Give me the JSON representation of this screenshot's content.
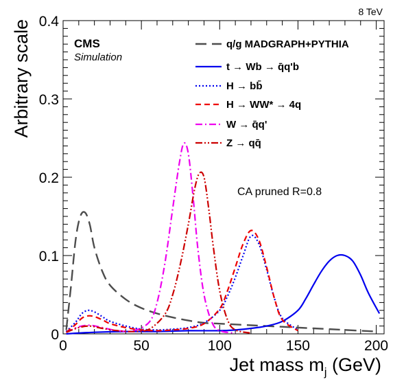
{
  "chart_data": {
    "type": "line",
    "energy_label": "8 TeV",
    "experiment_label": "CMS",
    "simulation_label": "Simulation",
    "annotation": "CA pruned R=0.8",
    "xlabel_main": "Jet mass m",
    "xlabel_sub": "j",
    "xlabel_unit": " (GeV)",
    "ylabel": "Arbitrary scale",
    "xlim": [
      0,
      205
    ],
    "ylim": [
      0,
      0.4
    ],
    "x_ticks": [
      0,
      50,
      100,
      150,
      200
    ],
    "y_ticks": [
      0,
      0.1,
      0.2,
      0.3,
      0.4
    ],
    "y_tick_labels": [
      "0",
      "0.1",
      "0.2",
      "0.3",
      "0.4"
    ],
    "legend_placement": "top-right",
    "series": [
      {
        "name": "q/g MADGRAPH+PYTHIA",
        "color": "#4d4d4d",
        "dash": "long-dash",
        "x": [
          2,
          5,
          8,
          11,
          14,
          17,
          20,
          25,
          30,
          40,
          50,
          60,
          70,
          80,
          90,
          100,
          120,
          140,
          160,
          180,
          200
        ],
        "y": [
          0.005,
          0.06,
          0.12,
          0.15,
          0.155,
          0.14,
          0.11,
          0.08,
          0.062,
          0.044,
          0.033,
          0.026,
          0.021,
          0.017,
          0.014,
          0.013,
          0.011,
          0.009,
          0.007,
          0.005,
          0.003
        ]
      },
      {
        "name": "t → Wb → q̄q'b",
        "color": "#0000ee",
        "dash": "solid",
        "x": [
          2,
          20,
          40,
          60,
          80,
          100,
          110,
          120,
          130,
          140,
          150,
          155,
          160,
          165,
          170,
          175,
          180,
          185,
          190,
          195,
          202
        ],
        "y": [
          0,
          0.002,
          0.003,
          0.003,
          0.004,
          0.004,
          0.005,
          0.007,
          0.01,
          0.016,
          0.03,
          0.045,
          0.063,
          0.08,
          0.093,
          0.1,
          0.1,
          0.093,
          0.075,
          0.052,
          0.026
        ]
      },
      {
        "name": "H → bb̄",
        "color": "#0000ee",
        "dash": "dot",
        "x": [
          2,
          8,
          12,
          16,
          20,
          25,
          30,
          40,
          50,
          60,
          70,
          80,
          90,
          100,
          105,
          110,
          115,
          120,
          125,
          130,
          135,
          140,
          150
        ],
        "y": [
          0.003,
          0.015,
          0.026,
          0.03,
          0.028,
          0.022,
          0.016,
          0.01,
          0.006,
          0.005,
          0.006,
          0.008,
          0.014,
          0.03,
          0.048,
          0.072,
          0.1,
          0.125,
          0.115,
          0.082,
          0.045,
          0.02,
          0.005
        ]
      },
      {
        "name": "H → WW* → 4q",
        "color": "#ee0000",
        "dash": "dash",
        "x": [
          2,
          8,
          12,
          16,
          20,
          25,
          30,
          40,
          50,
          60,
          70,
          80,
          90,
          100,
          105,
          110,
          115,
          120,
          125,
          130,
          135,
          140,
          150
        ],
        "y": [
          0.002,
          0.012,
          0.02,
          0.023,
          0.022,
          0.018,
          0.013,
          0.008,
          0.005,
          0.004,
          0.005,
          0.007,
          0.013,
          0.032,
          0.055,
          0.085,
          0.115,
          0.132,
          0.12,
          0.085,
          0.045,
          0.018,
          0.004
        ]
      },
      {
        "name": "W → q̄q'",
        "color": "#ee00ee",
        "dash": "dash-dot",
        "x": [
          2,
          10,
          17,
          25,
          35,
          45,
          55,
          60,
          65,
          70,
          74,
          77,
          80,
          83,
          86,
          90,
          95,
          100,
          110
        ],
        "y": [
          0.002,
          0.009,
          0.011,
          0.008,
          0.004,
          0.004,
          0.015,
          0.04,
          0.09,
          0.16,
          0.215,
          0.243,
          0.23,
          0.175,
          0.11,
          0.05,
          0.015,
          0.004,
          0.001
        ]
      },
      {
        "name": "Z → qq̄",
        "color": "#cc0000",
        "dash": "dash-dot-dot",
        "x": [
          2,
          10,
          17,
          25,
          35,
          45,
          55,
          65,
          70,
          75,
          80,
          84,
          87,
          90,
          93,
          96,
          100,
          105,
          110,
          120
        ],
        "y": [
          0.002,
          0.008,
          0.01,
          0.007,
          0.004,
          0.003,
          0.006,
          0.025,
          0.05,
          0.09,
          0.14,
          0.185,
          0.205,
          0.2,
          0.16,
          0.11,
          0.055,
          0.018,
          0.005,
          0.001
        ]
      }
    ]
  }
}
